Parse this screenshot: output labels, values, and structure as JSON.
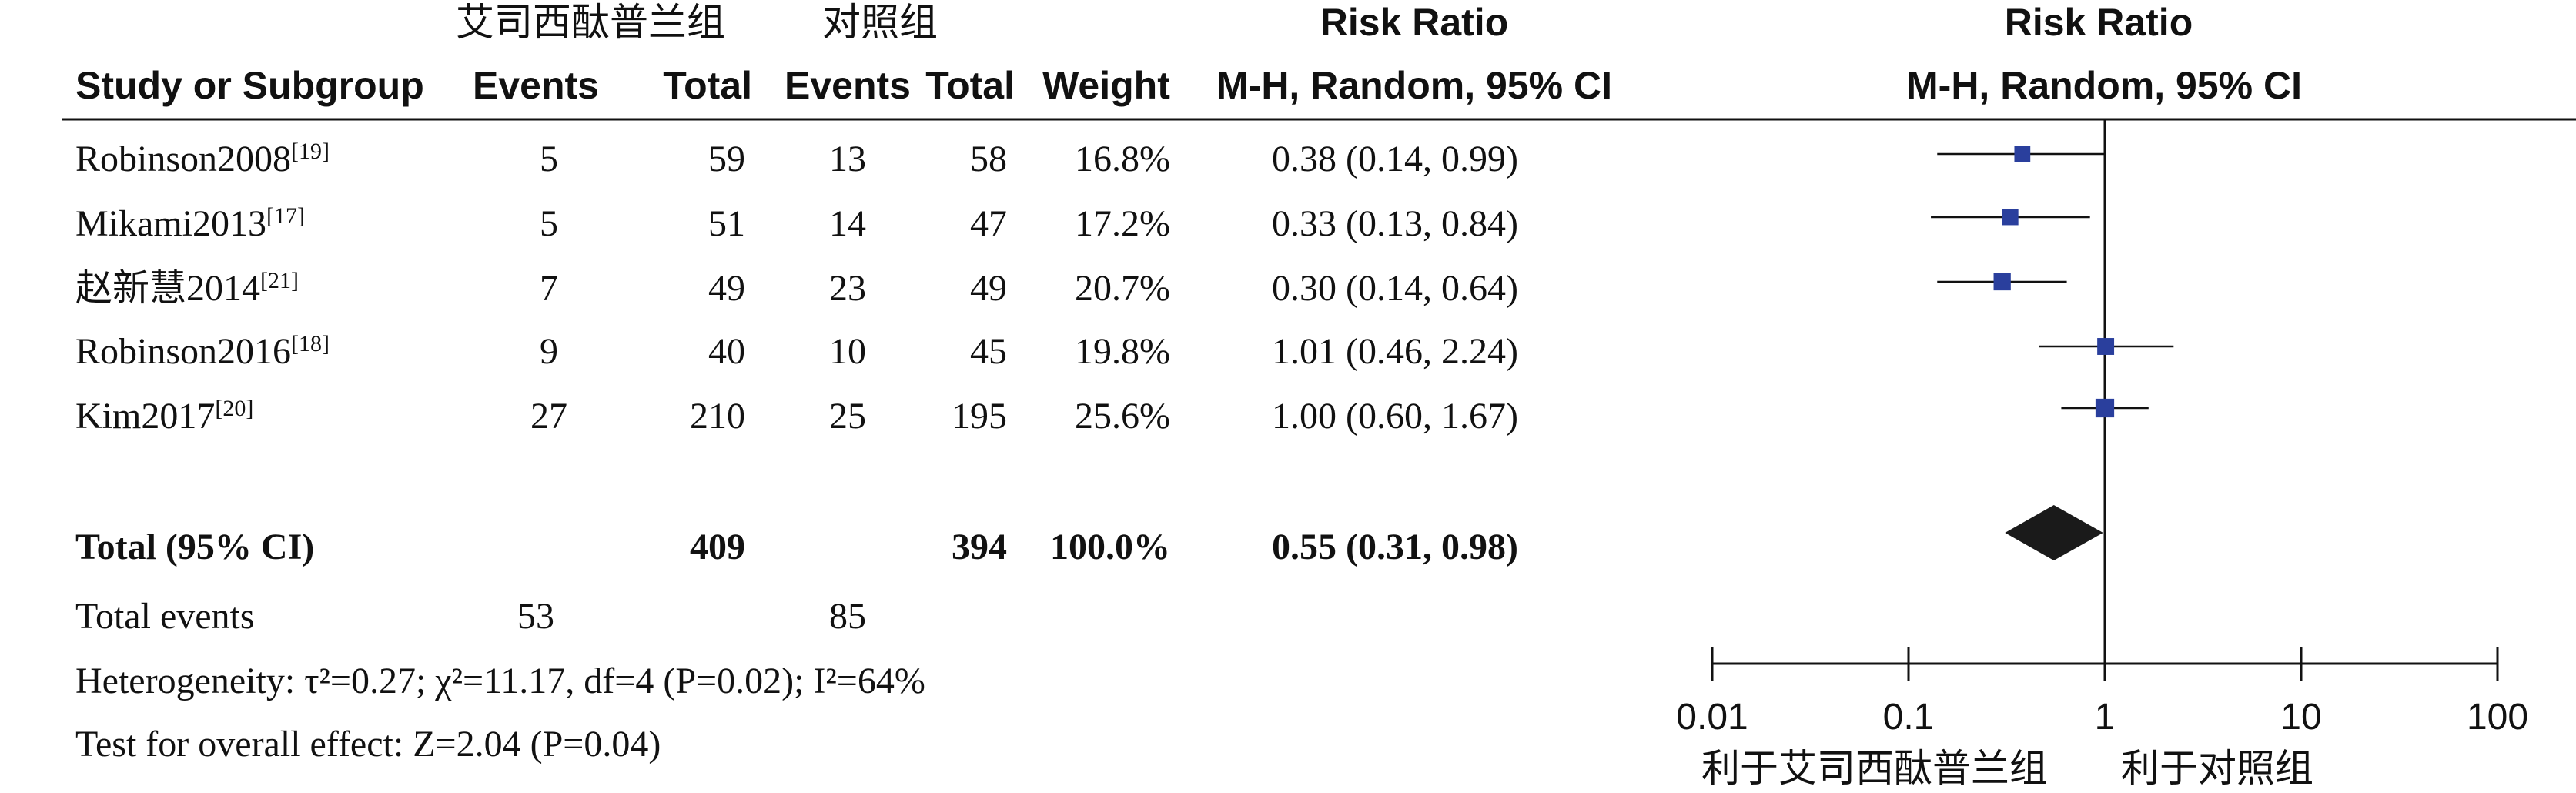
{
  "header": {
    "group1": "艾司西酞普兰组",
    "group2": "对照组",
    "rr_title_table": "Risk Ratio",
    "rr_title_plot": "Risk Ratio",
    "study_col": "Study or Subgroup",
    "events1": "Events",
    "total1": "Total",
    "events2": "Events",
    "total2": "Total",
    "weight": "Weight",
    "method_table": "M-H, Random, 95% CI",
    "method_plot": "M-H, Random, 95% CI"
  },
  "studies": [
    {
      "name": "Robinson2008",
      "ref": "[19]",
      "e1": "5",
      "t1": "59",
      "e2": "13",
      "t2": "58",
      "weight": "16.8%",
      "ci": "0.38 (0.14, 0.99)"
    },
    {
      "name": "Mikami2013",
      "ref": "[17]",
      "e1": "5",
      "t1": "51",
      "e2": "14",
      "t2": "47",
      "weight": "17.2%",
      "ci": "0.33 (0.13, 0.84)"
    },
    {
      "name": "赵新慧2014",
      "ref": "[21]",
      "e1": "7",
      "t1": "49",
      "e2": "23",
      "t2": "49",
      "weight": "20.7%",
      "ci": "0.30 (0.14, 0.64)"
    },
    {
      "name": "Robinson2016",
      "ref": "[18]",
      "e1": "9",
      "t1": "40",
      "e2": "10",
      "t2": "45",
      "weight": "19.8%",
      "ci": "1.01 (0.46, 2.24)"
    },
    {
      "name": "Kim2017",
      "ref": "[20]",
      "e1": "27",
      "t1": "210",
      "e2": "25",
      "t2": "195",
      "weight": "25.6%",
      "ci": "1.00 (0.60, 1.67)"
    }
  ],
  "total": {
    "label": "Total (95% CI)",
    "t1": "409",
    "t2": "394",
    "weight": "100.0%",
    "ci": "0.55 (0.31, 0.98)"
  },
  "total_events": {
    "label": "Total events",
    "e1": "53",
    "e2": "85"
  },
  "footnotes": {
    "heterogeneity": "Heterogeneity: τ²=0.27; χ²=11.17, df=4 (P=0.02); I²=64%",
    "overall": "Test for overall effect: Z=2.04 (P=0.04)"
  },
  "axis_caption": {
    "left": "利于艾司西酞普兰组",
    "right": "利于对照组"
  },
  "colors": {
    "marker": "#2a3f9d",
    "diamond": "#1a1a1a",
    "line": "#111111"
  },
  "chart_data": {
    "type": "forest",
    "title": "Risk Ratio",
    "xscale": "log",
    "xlim": [
      0.01,
      100
    ],
    "xticks": [
      "0.01",
      "0.1",
      "1",
      "10",
      "100"
    ],
    "null_line": 1,
    "series": [
      {
        "study": "Robinson2008",
        "rr": 0.38,
        "lower": 0.14,
        "upper": 0.99,
        "weight": 16.8
      },
      {
        "study": "Mikami2013",
        "rr": 0.33,
        "lower": 0.13,
        "upper": 0.84,
        "weight": 17.2
      },
      {
        "study": "赵新慧2014",
        "rr": 0.3,
        "lower": 0.14,
        "upper": 0.64,
        "weight": 20.7
      },
      {
        "study": "Robinson2016",
        "rr": 1.01,
        "lower": 0.46,
        "upper": 2.24,
        "weight": 19.8
      },
      {
        "study": "Kim2017",
        "rr": 1.0,
        "lower": 0.6,
        "upper": 1.67,
        "weight": 25.6
      }
    ],
    "pooled": {
      "rr": 0.55,
      "lower": 0.31,
      "upper": 0.98
    }
  }
}
